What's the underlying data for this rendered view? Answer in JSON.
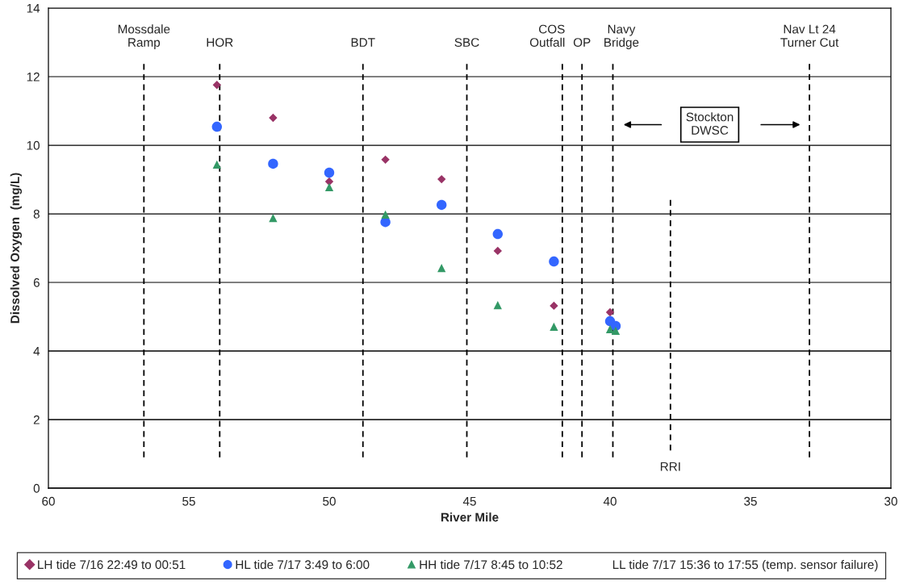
{
  "chart_data": {
    "type": "scatter",
    "xlabel": "River Mile",
    "ylabel": "Dissolved Oxygen  (mg/L)",
    "xlim": [
      60,
      30
    ],
    "xticks": [
      60,
      55,
      50,
      45,
      40,
      35,
      30
    ],
    "ylim": [
      0,
      14
    ],
    "yticks": [
      0,
      2,
      4,
      6,
      8,
      10,
      12,
      14
    ],
    "grid": "y",
    "legend": "bottom",
    "series": [
      {
        "name": "LH tide 7/16 22:49 to 00:51",
        "color": "#993366",
        "marker": "diamond",
        "x": [
          54,
          52,
          50,
          48,
          46,
          44,
          42,
          40
        ],
        "values": [
          11.76,
          10.8,
          8.94,
          9.58,
          9.01,
          6.92,
          5.32,
          5.13
        ]
      },
      {
        "name": "HL tide 7/17 3:49 to 6:00",
        "color": "#3366ff",
        "marker": "circle",
        "x": [
          54,
          52,
          50,
          48,
          46,
          44,
          42,
          40,
          39.8
        ],
        "values": [
          10.54,
          9.46,
          9.2,
          7.76,
          8.26,
          7.41,
          6.61,
          4.87,
          4.73
        ]
      },
      {
        "name": "HH tide 7/17 8:45 to 10:52",
        "color": "#339966",
        "marker": "triangle",
        "x": [
          54,
          52,
          50,
          48,
          46,
          44,
          42,
          40,
          39.8
        ],
        "values": [
          9.44,
          7.88,
          8.78,
          7.98,
          6.42,
          5.34,
          4.71,
          4.64,
          4.59
        ]
      },
      {
        "name": "LL tide 7/17 15:36 to 17:55 (temp. sensor failure)",
        "marker": "none"
      }
    ],
    "ref_lines": [
      {
        "axis": "x",
        "value": 56.6,
        "label": "Mossdale\nRamp",
        "line_style": "dashed"
      },
      {
        "axis": "x",
        "value": 53.9,
        "label": "HOR",
        "line_style": "dashed"
      },
      {
        "axis": "x",
        "value": 48.8,
        "label": "BDT",
        "line_style": "dashed"
      },
      {
        "axis": "x",
        "value": 45.1,
        "label": "SBC",
        "line_style": "dashed"
      },
      {
        "axis": "x",
        "value": 41.7,
        "label": "COS\nOutfall",
        "line_style": "dashed"
      },
      {
        "axis": "x",
        "value": 41.0,
        "label": "OP",
        "line_style": "dashed"
      },
      {
        "axis": "x",
        "value": 39.9,
        "label": "Navy\nBridge",
        "line_style": "dashed"
      },
      {
        "axis": "x",
        "value": 37.85,
        "line_style": "dashed"
      },
      {
        "axis": "x",
        "value": 32.9,
        "label": "Nav Lt 24\nTurner Cut",
        "line_style": "dashed"
      }
    ],
    "annotations": [
      "RRI",
      "Stockton\nDWSC"
    ]
  }
}
